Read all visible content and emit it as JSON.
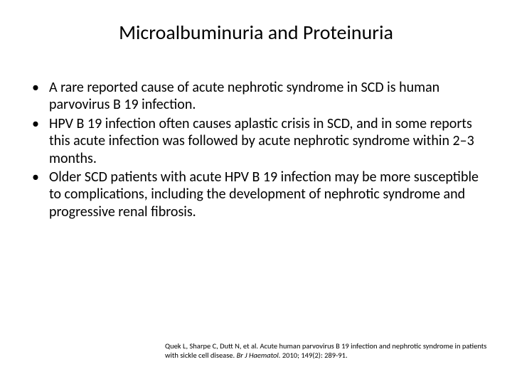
{
  "slide": {
    "title": "Microalbuminuria and Proteinuria",
    "background_color": "#ffffff",
    "title_fontsize": 28,
    "title_color": "#000000",
    "body_fontsize": 20,
    "body_color": "#000000",
    "bullet_marker": "•",
    "bullets": [
      "A rare reported cause of acute nephrotic syndrome in SCD is human parvovirus B 19 infection.",
      "HPV B 19 infection often causes aplastic crisis in SCD, and in some reports this acute infection was followed by acute nephrotic syndrome within 2–3 months.",
      "Older SCD patients with acute HPV B 19 infection may be more susceptible to complications, including the development of nephrotic syndrome and progressive renal fibrosis."
    ],
    "citation": {
      "authors": "Quek L, Sharpe C, Dutt N, et al.",
      "title_text": "Acute human parvovirus B 19 infection and nephrotic syndrome in patients with sickle cell disease.",
      "journal": "Br J Haematol.",
      "year_vol": "2010; 149(2): 289-91.",
      "fontsize": 10.5,
      "color": "#000000"
    }
  }
}
